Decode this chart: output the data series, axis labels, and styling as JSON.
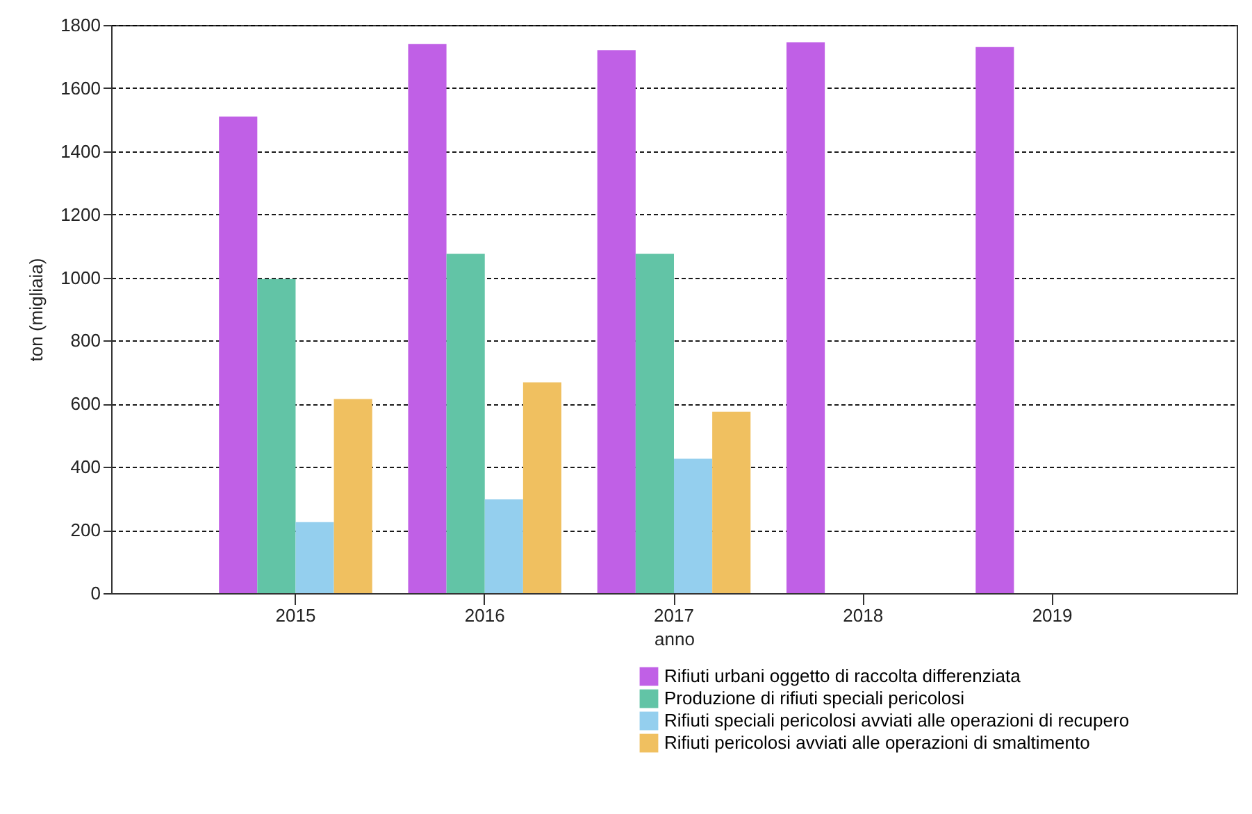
{
  "chart_data": {
    "type": "bar",
    "xlabel": "anno",
    "ylabel": "ton (migliaia)",
    "categories": [
      "2015",
      "2016",
      "2017",
      "2018",
      "2019"
    ],
    "series": [
      {
        "name": "Rifiuti urbani oggetto di raccolta differenziata",
        "color": "#c060e6",
        "values": [
          1510,
          1740,
          1720,
          1745,
          1730
        ]
      },
      {
        "name": "Produzione di rifiuti speciali pericolosi",
        "color": "#62c4a6",
        "values": [
          995,
          1075,
          1075,
          null,
          null
        ]
      },
      {
        "name": "Rifiuti speciali pericolosi avviati alle operazioni di recupero",
        "color": "#94cfee",
        "values": [
          225,
          297,
          426,
          null,
          null
        ]
      },
      {
        "name": "Rifiuti pericolosi avviati alle operazioni di smaltimento",
        "color": "#f0c060",
        "values": [
          615,
          668,
          575,
          null,
          null
        ]
      }
    ],
    "ylim": [
      0,
      1800
    ],
    "yticks": [
      0,
      200,
      400,
      600,
      800,
      1000,
      1200,
      1400,
      1600,
      1800
    ],
    "grid": "y",
    "legend": "bottom right"
  }
}
